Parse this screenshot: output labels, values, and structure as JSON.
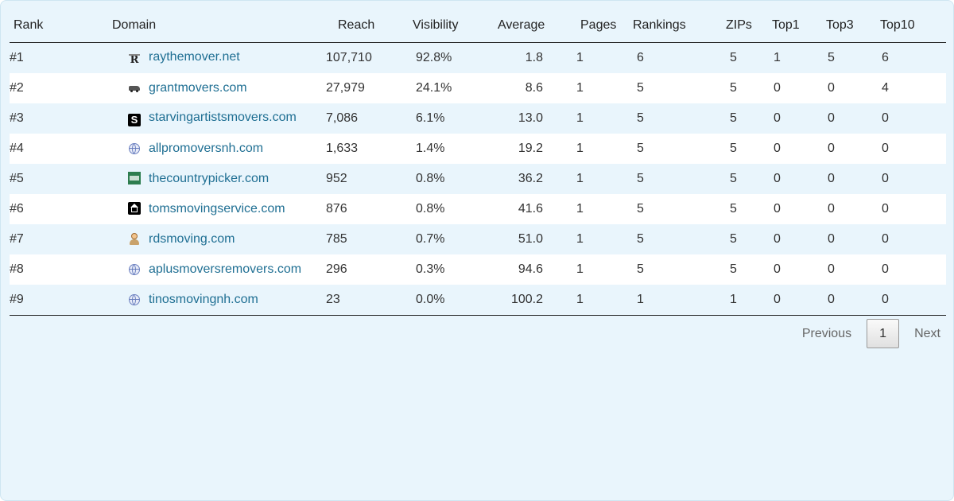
{
  "columns": {
    "rank": "Rank",
    "domain": "Domain",
    "reach": "Reach",
    "visibility": "Visibility",
    "average": "Average",
    "pages": "Pages",
    "rankings": "Rankings",
    "zips": "ZIPs",
    "top1": "Top1",
    "top3": "Top3",
    "top10": "Top10"
  },
  "rows": [
    {
      "rank": "#1",
      "icon": "r-logo-icon",
      "domain": "raythemover.net",
      "reach": "107,710",
      "visibility": "92.8%",
      "average": "1.8",
      "pages": "1",
      "rankings": "6",
      "zips": "5",
      "top1": "1",
      "top3": "5",
      "top10": "6"
    },
    {
      "rank": "#2",
      "icon": "truck-icon",
      "domain": "grantmovers.com",
      "reach": "27,979",
      "visibility": "24.1%",
      "average": "8.6",
      "pages": "1",
      "rankings": "5",
      "zips": "5",
      "top1": "0",
      "top3": "0",
      "top10": "4"
    },
    {
      "rank": "#3",
      "icon": "s-logo-icon",
      "domain": "starvingartistsmovers.com",
      "reach": "7,086",
      "visibility": "6.1%",
      "average": "13.0",
      "pages": "1",
      "rankings": "5",
      "zips": "5",
      "top1": "0",
      "top3": "0",
      "top10": "0"
    },
    {
      "rank": "#4",
      "icon": "globe-icon",
      "domain": "allpromoversnh.com",
      "reach": "1,633",
      "visibility": "1.4%",
      "average": "19.2",
      "pages": "1",
      "rankings": "5",
      "zips": "5",
      "top1": "0",
      "top3": "0",
      "top10": "0"
    },
    {
      "rank": "#5",
      "icon": "green-logo-icon",
      "domain": "thecountrypicker.com",
      "reach": "952",
      "visibility": "0.8%",
      "average": "36.2",
      "pages": "1",
      "rankings": "5",
      "zips": "5",
      "top1": "0",
      "top3": "0",
      "top10": "0"
    },
    {
      "rank": "#6",
      "icon": "home-icon",
      "domain": "tomsmovingservice.com",
      "reach": "876",
      "visibility": "0.8%",
      "average": "41.6",
      "pages": "1",
      "rankings": "5",
      "zips": "5",
      "top1": "0",
      "top3": "0",
      "top10": "0"
    },
    {
      "rank": "#7",
      "icon": "person-icon",
      "domain": "rdsmoving.com",
      "reach": "785",
      "visibility": "0.7%",
      "average": "51.0",
      "pages": "1",
      "rankings": "5",
      "zips": "5",
      "top1": "0",
      "top3": "0",
      "top10": "0"
    },
    {
      "rank": "#8",
      "icon": "globe-icon",
      "domain": "aplusmoversremovers.com",
      "reach": "296",
      "visibility": "0.3%",
      "average": "94.6",
      "pages": "1",
      "rankings": "5",
      "zips": "5",
      "top1": "0",
      "top3": "0",
      "top10": "0"
    },
    {
      "rank": "#9",
      "icon": "globe-icon",
      "domain": "tinosmovingnh.com",
      "reach": "23",
      "visibility": "0.0%",
      "average": "100.2",
      "pages": "1",
      "rankings": "1",
      "zips": "1",
      "top1": "0",
      "top3": "0",
      "top10": "0"
    }
  ],
  "pagination": {
    "previous": "Previous",
    "current": "1",
    "next": "Next"
  },
  "colors": {
    "background": "#e9f5fc",
    "link": "#1f6f93",
    "row_alt": "#ffffff"
  }
}
